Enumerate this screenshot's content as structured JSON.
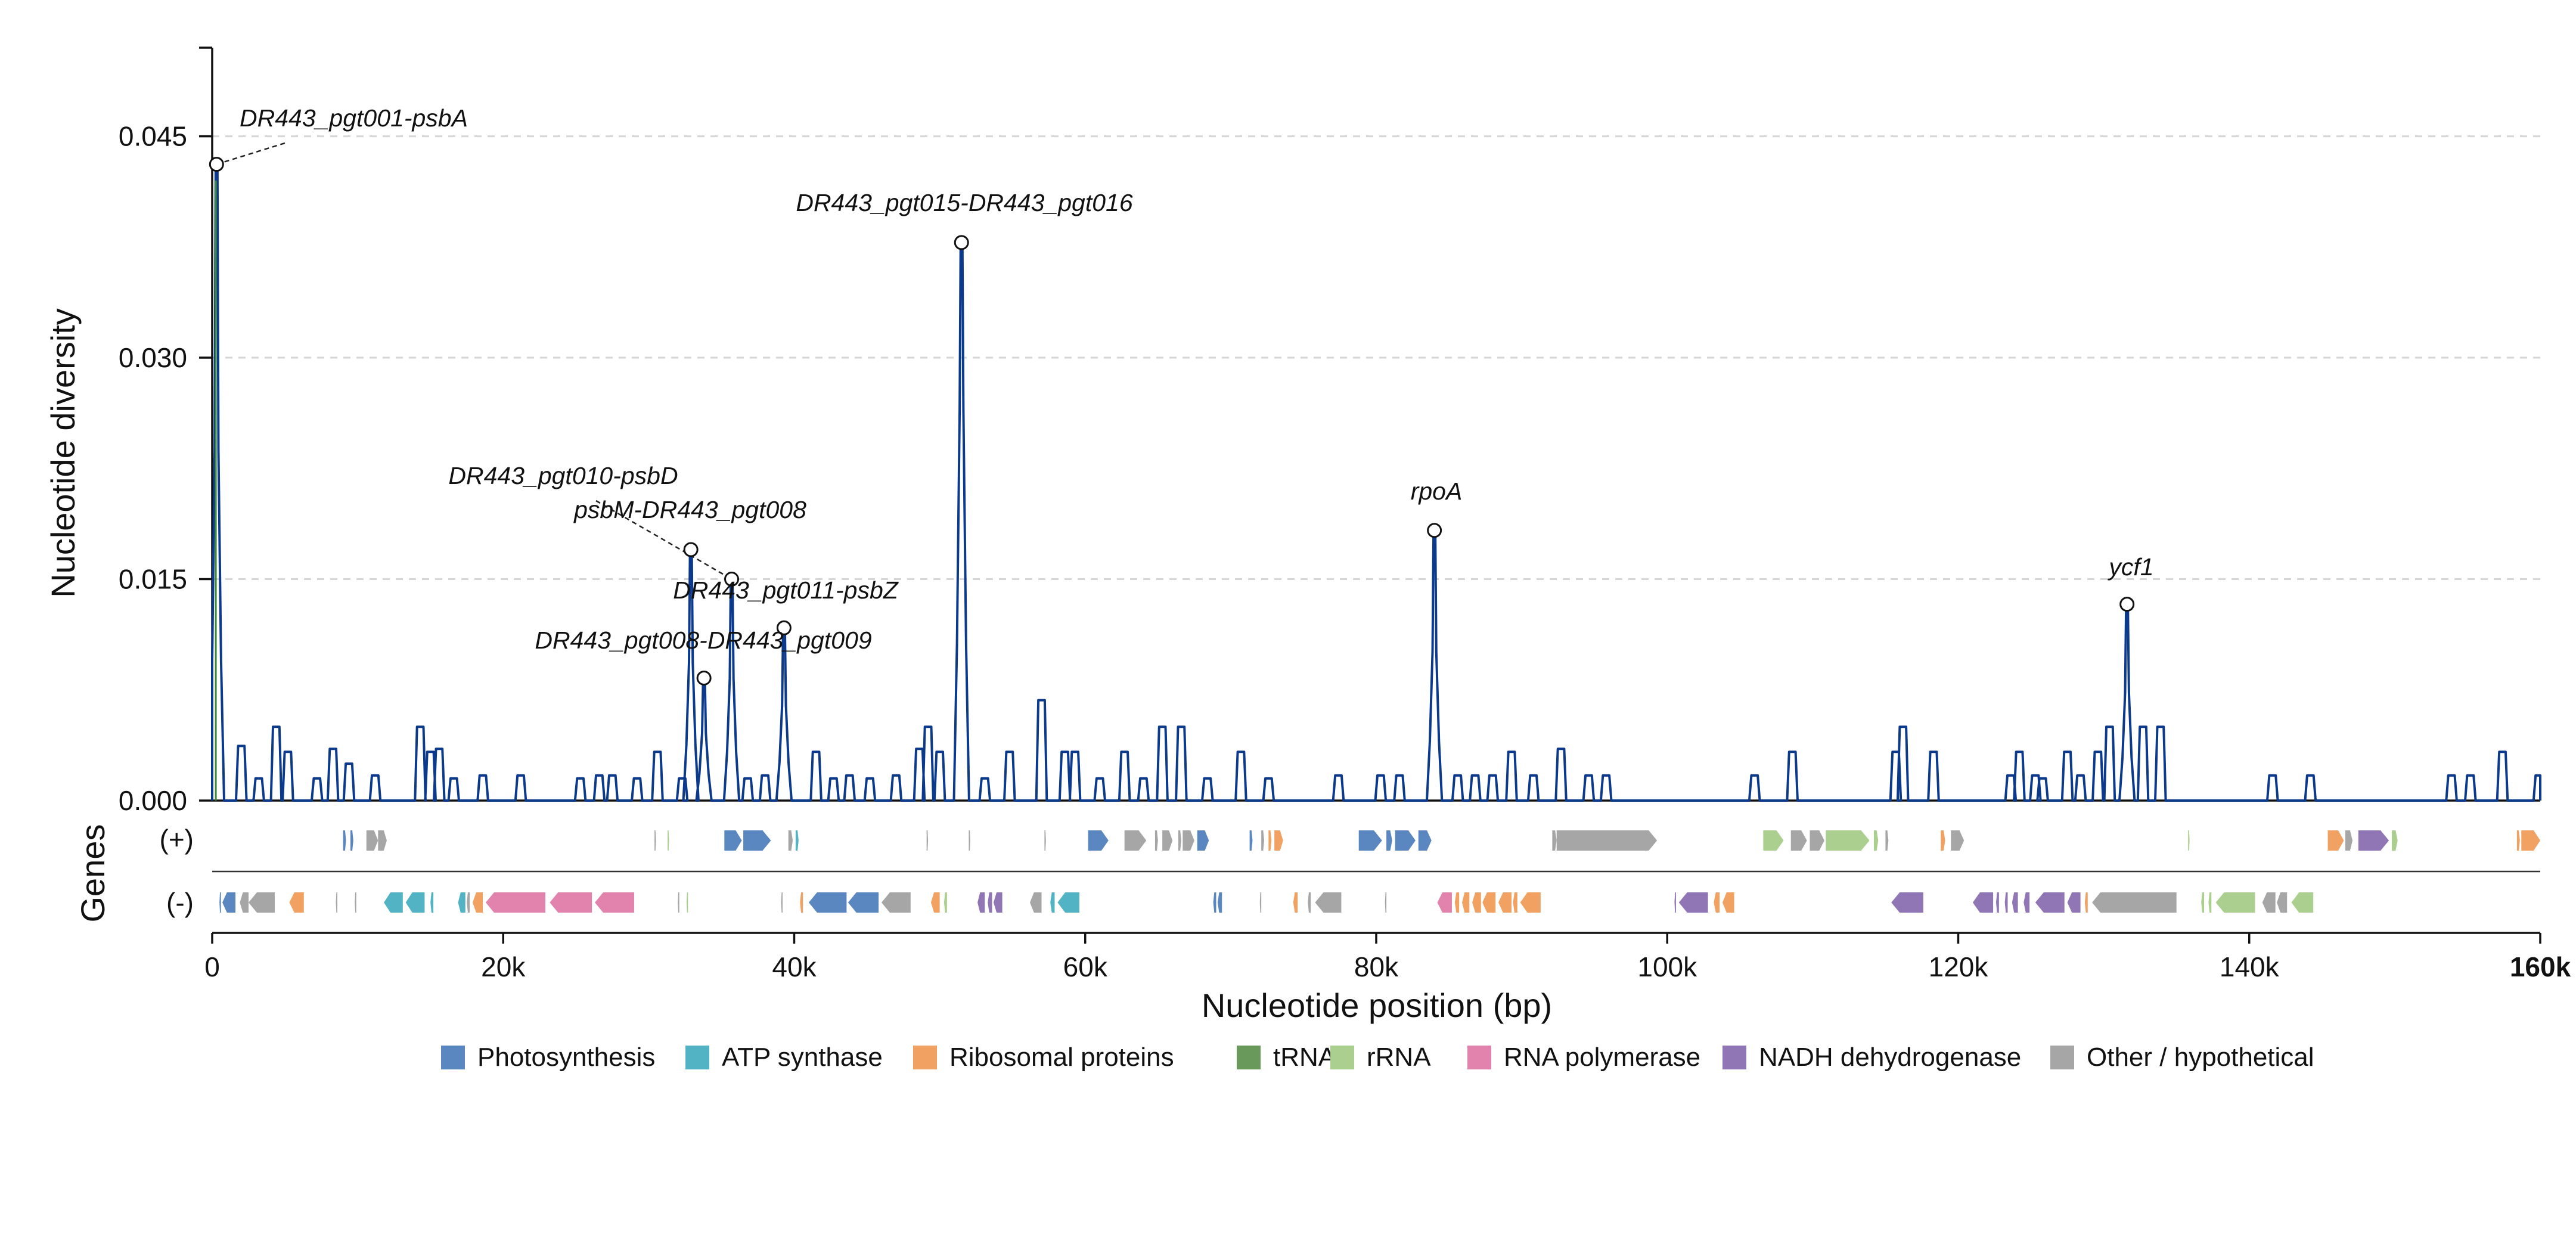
{
  "chart_data": {
    "type": "line",
    "title": "",
    "xlabel": "Nucleotide position (bp)",
    "ylabel": "Nucleotide diversity",
    "xlim": [
      0,
      160000
    ],
    "ylim": [
      0,
      0.051
    ],
    "x_ticks": [
      0,
      20000,
      40000,
      60000,
      80000,
      100000,
      120000,
      140000,
      160000
    ],
    "x_tick_labels": [
      "0",
      "20k",
      "40k",
      "60k",
      "80k",
      "100k",
      "120k",
      "140k",
      "160k"
    ],
    "y_ticks": [
      0,
      0.015,
      0.03,
      0.045
    ],
    "y_tick_labels": [
      "0.000",
      "0.015",
      "0.030",
      "0.045"
    ],
    "grid": "horizontal dashed",
    "line_color": "#0b3a8c",
    "peaks": [
      {
        "x": 300,
        "y": 0.0431
      },
      {
        "x": 51500,
        "y": 0.0378
      },
      {
        "x": 32900,
        "y": 0.017
      },
      {
        "x": 35700,
        "y": 0.015
      },
      {
        "x": 39300,
        "y": 0.0117
      },
      {
        "x": 33800,
        "y": 0.0083
      },
      {
        "x": 84000,
        "y": 0.0183
      },
      {
        "x": 131600,
        "y": 0.0133
      }
    ],
    "baseline_bumps": [
      [
        2000,
        0.0037
      ],
      [
        3200,
        0.0015
      ],
      [
        4400,
        0.005
      ],
      [
        5200,
        0.0033
      ],
      [
        7200,
        0.0015
      ],
      [
        8300,
        0.0035
      ],
      [
        9400,
        0.0025
      ],
      [
        11200,
        0.0017
      ],
      [
        14300,
        0.005
      ],
      [
        15000,
        0.0033
      ],
      [
        15600,
        0.0035
      ],
      [
        16600,
        0.0015
      ],
      [
        18600,
        0.0017
      ],
      [
        21200,
        0.0017
      ],
      [
        25300,
        0.0015
      ],
      [
        26600,
        0.0017
      ],
      [
        27500,
        0.0017
      ],
      [
        29200,
        0.0015
      ],
      [
        30600,
        0.0033
      ],
      [
        32300,
        0.0015
      ],
      [
        36800,
        0.0015
      ],
      [
        38000,
        0.0017
      ],
      [
        41500,
        0.0033
      ],
      [
        42700,
        0.0015
      ],
      [
        43800,
        0.0017
      ],
      [
        45200,
        0.0015
      ],
      [
        47000,
        0.0017
      ],
      [
        48600,
        0.0035
      ],
      [
        49200,
        0.005
      ],
      [
        50000,
        0.0033
      ],
      [
        53100,
        0.0015
      ],
      [
        54800,
        0.0033
      ],
      [
        57000,
        0.0068
      ],
      [
        58600,
        0.0033
      ],
      [
        59300,
        0.0033
      ],
      [
        61000,
        0.0015
      ],
      [
        62700,
        0.0033
      ],
      [
        64000,
        0.0015
      ],
      [
        65300,
        0.005
      ],
      [
        66600,
        0.005
      ],
      [
        68400,
        0.0015
      ],
      [
        70700,
        0.0033
      ],
      [
        72600,
        0.0015
      ],
      [
        77400,
        0.0017
      ],
      [
        80300,
        0.0017
      ],
      [
        81600,
        0.0017
      ],
      [
        85600,
        0.0017
      ],
      [
        86800,
        0.0017
      ],
      [
        88000,
        0.0017
      ],
      [
        89300,
        0.0033
      ],
      [
        90800,
        0.0017
      ],
      [
        92700,
        0.0035
      ],
      [
        94600,
        0.0017
      ],
      [
        95800,
        0.0017
      ],
      [
        106000,
        0.0017
      ],
      [
        108600,
        0.0033
      ],
      [
        115700,
        0.0033
      ],
      [
        116200,
        0.005
      ],
      [
        118300,
        0.0033
      ],
      [
        123600,
        0.0017
      ],
      [
        124200,
        0.0033
      ],
      [
        125300,
        0.0017
      ],
      [
        125800,
        0.0015
      ],
      [
        127500,
        0.0033
      ],
      [
        128400,
        0.0017
      ],
      [
        129600,
        0.0033
      ],
      [
        130400,
        0.005
      ],
      [
        132700,
        0.005
      ],
      [
        133900,
        0.005
      ],
      [
        141600,
        0.0017
      ],
      [
        144200,
        0.0017
      ],
      [
        153900,
        0.0017
      ],
      [
        155200,
        0.0017
      ],
      [
        157400,
        0.0033
      ],
      [
        159900,
        0.0017
      ]
    ],
    "annotations": [
      {
        "label": "DR443_pgt001-psbA",
        "x": 300,
        "y": 0.0431
      },
      {
        "label": "DR443_pgt015-DR443_pgt016",
        "x": 51500,
        "y": 0.0378
      },
      {
        "label": "DR443_pgt010-psbD",
        "x": 32900,
        "y": 0.017
      },
      {
        "label": "psbM-DR443_pgt008",
        "x": 35700,
        "y": 0.015
      },
      {
        "label": "DR443_pgt011-psbZ",
        "x": 39300,
        "y": 0.0117
      },
      {
        "label": "DR443_pgt008-DR443_pgt009",
        "x": 33800,
        "y": 0.0083
      },
      {
        "label": "rpoA",
        "x": 84000,
        "y": 0.0183
      },
      {
        "label": "ycf1",
        "x": 131600,
        "y": 0.0133
      }
    ],
    "gene_track": {
      "label": "Genes",
      "strand_labels": [
        "(+)",
        "(-)"
      ],
      "plus_genes": [
        [
          9000,
          9200,
          "Photosynthesis"
        ],
        [
          9500,
          9700,
          "Photosynthesis"
        ],
        [
          10600,
          11400,
          "Other / hypothetical"
        ],
        [
          11400,
          12000,
          "Other / hypothetical"
        ],
        [
          30400,
          30500,
          "Other / hypothetical"
        ],
        [
          31300,
          31400,
          "rRNA"
        ],
        [
          35200,
          36400,
          "Photosynthesis"
        ],
        [
          36500,
          38400,
          "Photosynthesis"
        ],
        [
          39600,
          39900,
          "Other / hypothetical"
        ],
        [
          40100,
          40300,
          "ATP synthase"
        ],
        [
          49100,
          49200,
          "Other / hypothetical"
        ],
        [
          52000,
          52100,
          "Other / hypothetical"
        ],
        [
          57200,
          57300,
          "Other / hypothetical"
        ],
        [
          60200,
          61600,
          "Photosynthesis"
        ],
        [
          62700,
          64200,
          "Other / hypothetical"
        ],
        [
          64800,
          65000,
          "Other / hypothetical"
        ],
        [
          65300,
          66000,
          "Other / hypothetical"
        ],
        [
          66400,
          66600,
          "Other / hypothetical"
        ],
        [
          66700,
          67500,
          "Other / hypothetical"
        ],
        [
          67700,
          68500,
          "Photosynthesis"
        ],
        [
          71300,
          71500,
          "Photosynthesis"
        ],
        [
          72100,
          72300,
          "Other / hypothetical"
        ],
        [
          72600,
          72800,
          "Ribosomal proteins"
        ],
        [
          73000,
          73600,
          "Ribosomal proteins"
        ],
        [
          78800,
          80400,
          "Photosynthesis"
        ],
        [
          80700,
          81100,
          "Photosynthesis"
        ],
        [
          81300,
          82700,
          "Photosynthesis"
        ],
        [
          82900,
          83800,
          "Photosynthesis"
        ],
        [
          92100,
          92400,
          "Other / hypothetical"
        ],
        [
          92400,
          99300,
          "Other / hypothetical"
        ],
        [
          106600,
          108000,
          "rRNA"
        ],
        [
          108500,
          109600,
          "Other / hypothetical"
        ],
        [
          109800,
          110800,
          "Other / hypothetical"
        ],
        [
          110900,
          113900,
          "rRNA"
        ],
        [
          114200,
          114500,
          "rRNA"
        ],
        [
          115000,
          115200,
          "Other / hypothetical"
        ],
        [
          118800,
          119100,
          "Ribosomal proteins"
        ],
        [
          119500,
          120400,
          "Other / hypothetical"
        ],
        [
          135800,
          135900,
          "rRNA"
        ],
        [
          145400,
          146500,
          "Ribosomal proteins"
        ],
        [
          146600,
          147100,
          "Other / hypothetical"
        ],
        [
          147500,
          149600,
          "NADH dehydrogenase"
        ],
        [
          149800,
          150200,
          "rRNA"
        ],
        [
          158400,
          158600,
          "Ribosomal proteins"
        ],
        [
          158700,
          160000,
          "Ribosomal proteins"
        ]
      ],
      "minus_genes": [
        [
          500,
          600,
          "Photosynthesis"
        ],
        [
          700,
          1600,
          "Photosynthesis"
        ],
        [
          1900,
          2500,
          "Other / hypothetical"
        ],
        [
          2500,
          4300,
          "Other / hypothetical"
        ],
        [
          5300,
          6300,
          "Ribosomal proteins"
        ],
        [
          8500,
          8600,
          "Other / hypothetical"
        ],
        [
          9800,
          9900,
          "Other / hypothetical"
        ],
        [
          11800,
          13100,
          "ATP synthase"
        ],
        [
          13300,
          14600,
          "ATP synthase"
        ],
        [
          15000,
          15200,
          "ATP synthase"
        ],
        [
          16900,
          17400,
          "ATP synthase"
        ],
        [
          17500,
          17700,
          "Other / hypothetical"
        ],
        [
          17900,
          18600,
          "Ribosomal proteins"
        ],
        [
          18800,
          22900,
          "RNA polymerase"
        ],
        [
          23200,
          26100,
          "RNA polymerase"
        ],
        [
          26300,
          29000,
          "RNA polymerase"
        ],
        [
          32000,
          32100,
          "Other / hypothetical"
        ],
        [
          32600,
          32700,
          "rRNA"
        ],
        [
          39100,
          39200,
          "Other / hypothetical"
        ],
        [
          40400,
          40600,
          "Ribosomal proteins"
        ],
        [
          41000,
          43600,
          "Photosynthesis"
        ],
        [
          43700,
          45800,
          "Photosynthesis"
        ],
        [
          46000,
          48000,
          "Other / hypothetical"
        ],
        [
          49400,
          50000,
          "Ribosomal proteins"
        ],
        [
          50300,
          50500,
          "rRNA"
        ],
        [
          52600,
          53100,
          "NADH dehydrogenase"
        ],
        [
          53300,
          53600,
          "NADH dehydrogenase"
        ],
        [
          53700,
          54300,
          "NADH dehydrogenase"
        ],
        [
          56200,
          57000,
          "Other / hypothetical"
        ],
        [
          57600,
          57900,
          "ATP synthase"
        ],
        [
          58100,
          59600,
          "ATP synthase"
        ],
        [
          68800,
          69000,
          "Photosynthesis"
        ],
        [
          69100,
          69400,
          "Photosynthesis"
        ],
        [
          72000,
          72100,
          "Other / hypothetical"
        ],
        [
          74300,
          74600,
          "Ribosomal proteins"
        ],
        [
          75300,
          75500,
          "Other / hypothetical"
        ],
        [
          75800,
          77600,
          "Other / hypothetical"
        ],
        [
          80600,
          80700,
          "Other / hypothetical"
        ],
        [
          84200,
          85200,
          "RNA polymerase"
        ],
        [
          85400,
          85700,
          "Ribosomal proteins"
        ],
        [
          85900,
          86400,
          "Ribosomal proteins"
        ],
        [
          86600,
          87200,
          "Ribosomal proteins"
        ],
        [
          87300,
          88200,
          "Ribosomal proteins"
        ],
        [
          88400,
          89300,
          "Ribosomal proteins"
        ],
        [
          89400,
          89700,
          "Ribosomal proteins"
        ],
        [
          89900,
          91300,
          "Ribosomal proteins"
        ],
        [
          100500,
          100600,
          "NADH dehydrogenase"
        ],
        [
          100800,
          102800,
          "NADH dehydrogenase"
        ],
        [
          103200,
          103600,
          "Ribosomal proteins"
        ],
        [
          103800,
          104600,
          "Ribosomal proteins"
        ],
        [
          115400,
          117600,
          "NADH dehydrogenase"
        ],
        [
          121000,
          122400,
          "NADH dehydrogenase"
        ],
        [
          122600,
          122800,
          "NADH dehydrogenase"
        ],
        [
          123200,
          123400,
          "NADH dehydrogenase"
        ],
        [
          123700,
          124100,
          "NADH dehydrogenase"
        ],
        [
          124500,
          124900,
          "NADH dehydrogenase"
        ],
        [
          125300,
          127300,
          "NADH dehydrogenase"
        ],
        [
          127500,
          128400,
          "NADH dehydrogenase"
        ],
        [
          128700,
          128900,
          "Ribosomal proteins"
        ],
        [
          129200,
          135000,
          "Other / hypothetical"
        ],
        [
          136700,
          136900,
          "rRNA"
        ],
        [
          137200,
          137400,
          "rRNA"
        ],
        [
          137700,
          140400,
          "rRNA"
        ],
        [
          140900,
          141800,
          "Other / hypothetical"
        ],
        [
          141900,
          142600,
          "Other / hypothetical"
        ],
        [
          142900,
          144400,
          "rRNA"
        ]
      ]
    },
    "legend": {
      "placement": "bottom",
      "entries": [
        {
          "name": "Photosynthesis",
          "color": "#5b87c0"
        },
        {
          "name": "ATP synthase",
          "color": "#52b3c4"
        },
        {
          "name": "Ribosomal proteins",
          "color": "#f1a262"
        },
        {
          "name": "tRNA",
          "color": "#6a9a5b"
        },
        {
          "name": "rRNA",
          "color": "#abcf8f"
        },
        {
          "name": "RNA polymerase",
          "color": "#e183ac"
        },
        {
          "name": "NADH dehydrogenase",
          "color": "#9076b5"
        },
        {
          "name": "Other / hypothetical",
          "color": "#a6a6a6"
        }
      ]
    }
  }
}
